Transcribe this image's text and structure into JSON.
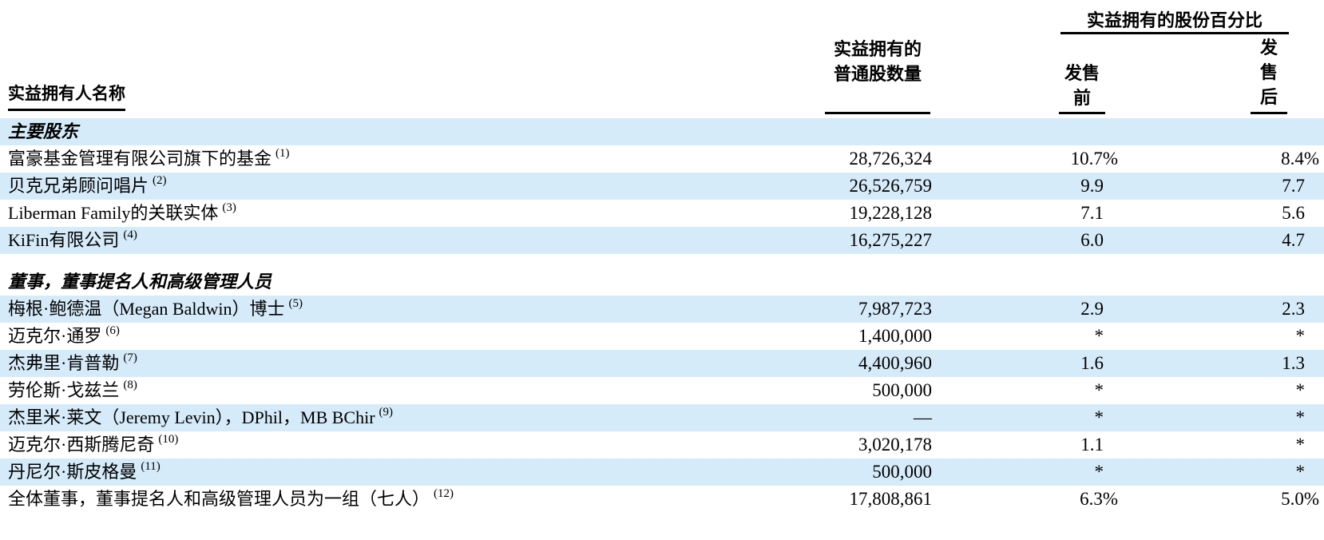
{
  "table": {
    "headers": {
      "owner_name": "实益拥有人名称",
      "shares_owned": [
        "实益拥有的",
        "普通股数量"
      ],
      "pct_group": "实益拥有的股份百分比",
      "pre_offering": [
        "发售",
        "前"
      ],
      "post_offering": [
        "发",
        "售",
        "后"
      ]
    },
    "accent_row_color": "#d6ebf9",
    "rows": [
      {
        "type": "section",
        "name": "主要股东"
      },
      {
        "type": "data",
        "name": "富豪基金管理有限公司旗下的基金",
        "note": "(1)",
        "shares": "28,726,324",
        "pre": "10.7%",
        "post": "8.4%"
      },
      {
        "type": "data",
        "name": "贝克兄弟顾问唱片",
        "note": "(2)",
        "shares": "26,526,759",
        "pre": "9.9",
        "post": "7.7"
      },
      {
        "type": "data",
        "name": "Liberman Family的关联实体",
        "note": "(3)",
        "shares": "19,228,128",
        "pre": "7.1",
        "post": "5.6"
      },
      {
        "type": "data",
        "name": "KiFin有限公司",
        "note": "(4)",
        "shares": "16,275,227",
        "pre": "6.0",
        "post": "4.7"
      },
      {
        "type": "spacer"
      },
      {
        "type": "section",
        "name": "董事，董事提名人和高级管理人员"
      },
      {
        "type": "data",
        "name": "梅根·鲍德温（Megan Baldwin）博士",
        "note": "(5)",
        "shares": "7,987,723",
        "pre": "2.9",
        "post": "2.3"
      },
      {
        "type": "data",
        "name": "迈克尔·通罗",
        "note": "(6)",
        "shares": "1,400,000",
        "pre": "*",
        "post": "*"
      },
      {
        "type": "data",
        "name": "杰弗里·肯普勒",
        "note": "(7)",
        "shares": "4,400,960",
        "pre": "1.6",
        "post": "1.3"
      },
      {
        "type": "data",
        "name": "劳伦斯·戈兹兰",
        "note": "(8)",
        "shares": "500,000",
        "pre": "*",
        "post": "*"
      },
      {
        "type": "data",
        "name": "杰里米·莱文（Jeremy Levin），DPhil，MB BChir",
        "note": "(9)",
        "shares": "—",
        "pre": "*",
        "post": "*"
      },
      {
        "type": "data",
        "name": "迈克尔·西斯腾尼奇",
        "note": "(10)",
        "shares": "3,020,178",
        "pre": "1.1",
        "post": "*"
      },
      {
        "type": "data",
        "name": "丹尼尔·斯皮格曼",
        "note": "(11)",
        "shares": "500,000",
        "pre": "*",
        "post": "*"
      },
      {
        "type": "data",
        "name": "全体董事，董事提名人和高级管理人员为一组（七人）",
        "note": "(12)",
        "shares": "17,808,861",
        "pre": "6.3%",
        "post": "5.0%"
      }
    ]
  }
}
